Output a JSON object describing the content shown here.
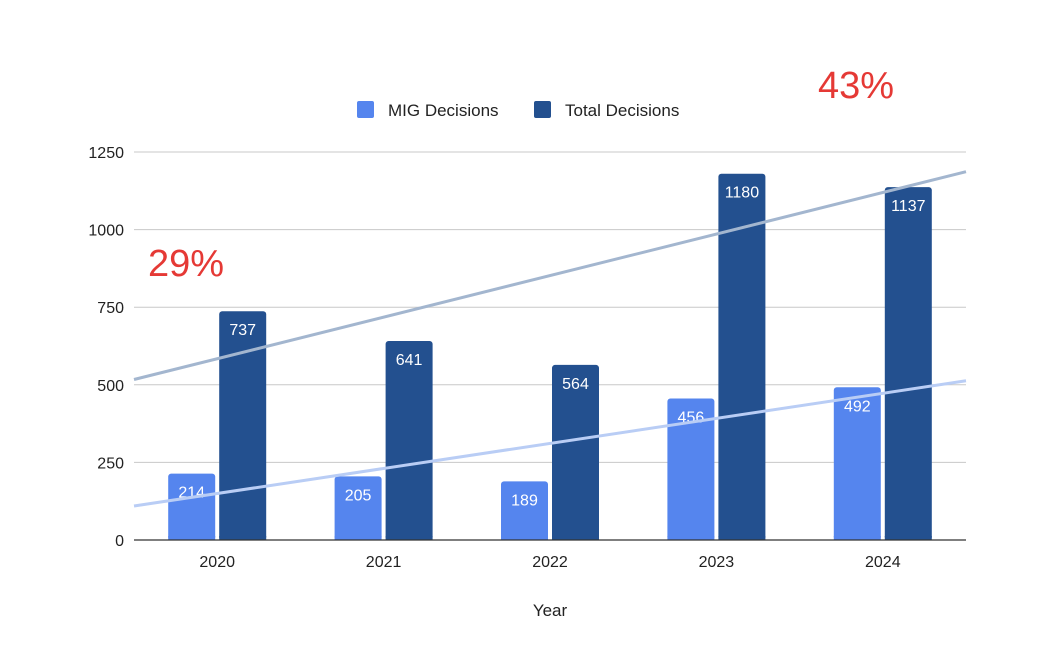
{
  "chart_data": {
    "type": "bar",
    "categories": [
      "2020",
      "2021",
      "2022",
      "2023",
      "2024"
    ],
    "series": [
      {
        "name": "MIG Decisions",
        "values": [
          214,
          205,
          189,
          456,
          492
        ],
        "color": "#5585ee"
      },
      {
        "name": "Total Decisions",
        "values": [
          737,
          641,
          564,
          1180,
          1137
        ],
        "color": "#23508f"
      }
    ],
    "trendlines": [
      {
        "series": "MIG Decisions",
        "color": "#b9cdf5"
      },
      {
        "series": "Total Decisions",
        "color": "#a3b6cf"
      }
    ],
    "xlabel": "Year",
    "ylabel": "",
    "ylim": [
      0,
      1250
    ],
    "yticks": [
      0,
      250,
      500,
      750,
      1000,
      1250
    ],
    "grid": true,
    "legend": "top",
    "annotations": [
      {
        "text": "29%",
        "color": "#e53935"
      },
      {
        "text": "43%",
        "color": "#e53935"
      }
    ]
  }
}
